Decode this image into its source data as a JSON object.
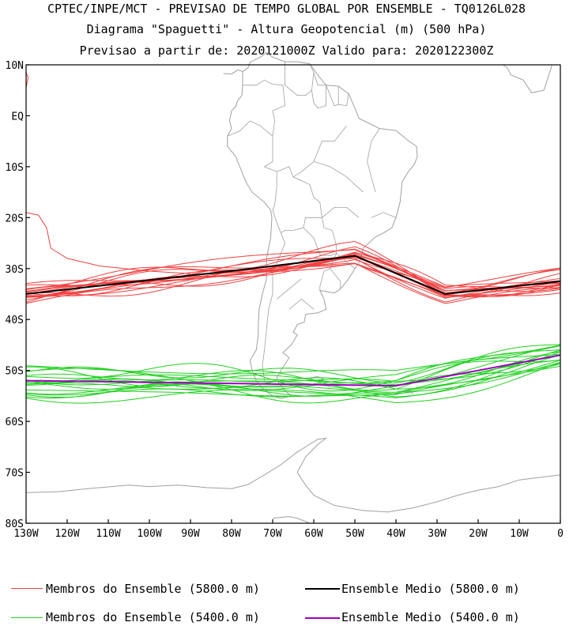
{
  "titles": {
    "line1": "CPTEC/INPE/MCT - PREVISAO DE TEMPO GLOBAL POR ENSEMBLE - TQ0126L028",
    "line2": "Diagrama \"Spaguetti\" - Altura Geopotencial (m) (500 hPa)",
    "line3": "Previsao a partir de: 2020121000Z  Valido para: 2020122300Z"
  },
  "map": {
    "lon_range": [
      -130,
      0
    ],
    "lat_range": [
      -80,
      10
    ],
    "lat_ticks": [
      "10N",
      "EQ",
      "10S",
      "20S",
      "30S",
      "40S",
      "50S",
      "60S",
      "70S",
      "80S"
    ],
    "lon_ticks": [
      "130W",
      "120W",
      "110W",
      "100W",
      "90W",
      "80W",
      "70W",
      "60W",
      "50W",
      "40W",
      "30W",
      "20W",
      "10W",
      "0"
    ],
    "coastline_color": "#a0a0a0"
  },
  "contours": {
    "members_5800_color": "#f04040",
    "mean_5800_color": "#000000",
    "members_5400_color": "#20d020",
    "mean_5400_color": "#a000c0"
  },
  "legend": {
    "members_5800": "Membros do Ensemble (5800.0 m)",
    "mean_5800": "Ensemble Medio (5800.0 m)",
    "members_5400": "Membros do Ensemble (5400.0 m)",
    "mean_5400": "Ensemble Medio (5400.0 m)"
  }
}
